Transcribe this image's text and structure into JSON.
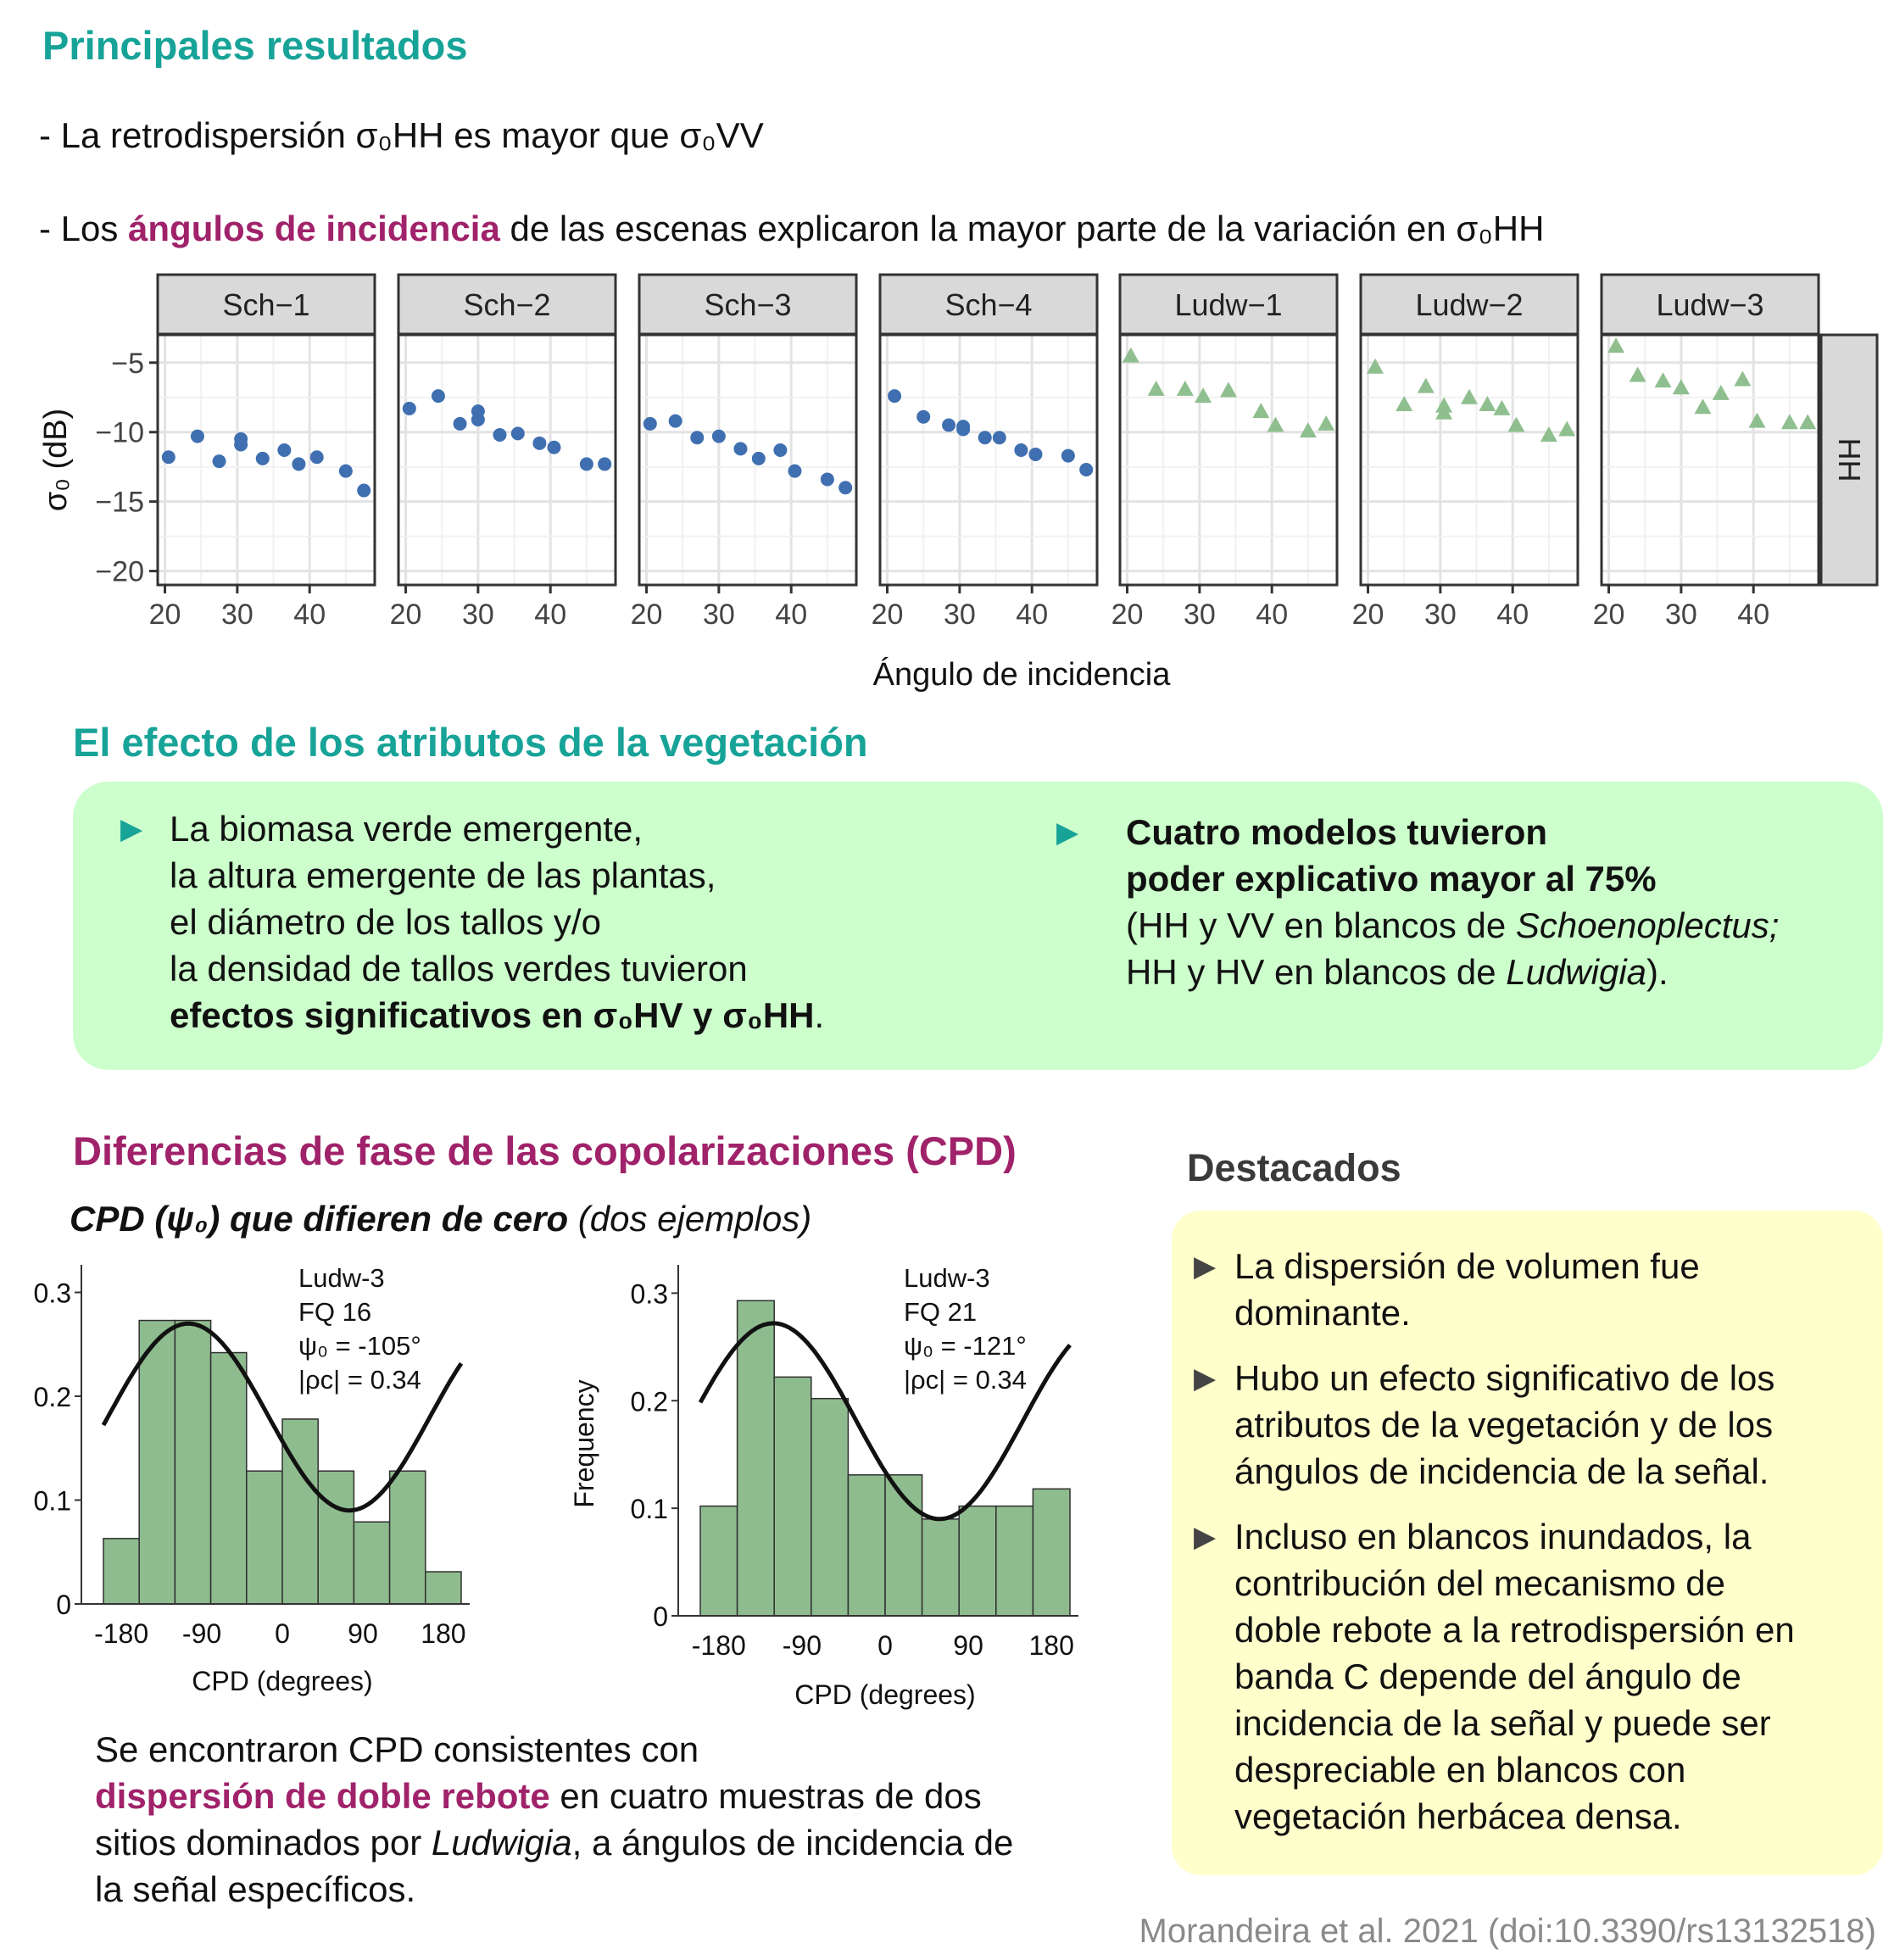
{
  "section1": {
    "title": "Principales resultados",
    "bullet1": "- La retrodispersión σ₀HH es mayor que σ₀VV",
    "bullet2_pre": "- Los ",
    "bullet2_hl": "ángulos de incidencia",
    "bullet2_post": " de las escenas explicaron la mayor parte de la variación en σ₀HH"
  },
  "facet_chart": {
    "chart_data": {
      "type": "scatter",
      "ylabel": "σ₀ (dB)",
      "xlabel": "Ángulo de incidencia",
      "strip_right": "HH",
      "xlim": [
        19,
        49
      ],
      "ylim": [
        -21,
        -3
      ],
      "xticks": [
        20,
        30,
        40
      ],
      "yticks": [
        -5,
        -10,
        -15,
        -20
      ],
      "ytick_labels": [
        "−5",
        "−10",
        "−15",
        "−20"
      ],
      "colors": {
        "Sch": "#3f6fb0",
        "Ludw": "#8fbf8f"
      },
      "panels": [
        {
          "name": "Sch−1",
          "marker": "circle",
          "points": [
            [
              20.5,
              -11.8
            ],
            [
              24.5,
              -10.3
            ],
            [
              27.5,
              -12.1
            ],
            [
              30.5,
              -10.5
            ],
            [
              30.5,
              -10.9
            ],
            [
              33.5,
              -11.9
            ],
            [
              36.5,
              -11.3
            ],
            [
              38.5,
              -12.3
            ],
            [
              41,
              -11.8
            ],
            [
              45,
              -12.8
            ],
            [
              47.5,
              -14.2
            ]
          ]
        },
        {
          "name": "Sch−2",
          "marker": "circle",
          "points": [
            [
              20.5,
              -8.3
            ],
            [
              24.5,
              -7.4
            ],
            [
              27.5,
              -9.4
            ],
            [
              30,
              -8.5
            ],
            [
              30,
              -9.1
            ],
            [
              33,
              -10.2
            ],
            [
              35.5,
              -10.1
            ],
            [
              38.5,
              -10.8
            ],
            [
              40.5,
              -11.1
            ],
            [
              45,
              -12.3
            ],
            [
              47.5,
              -12.3
            ]
          ]
        },
        {
          "name": "Sch−3",
          "marker": "circle",
          "points": [
            [
              20.5,
              -9.4
            ],
            [
              24,
              -9.2
            ],
            [
              27,
              -10.4
            ],
            [
              30,
              -10.3
            ],
            [
              33,
              -11.2
            ],
            [
              35.5,
              -11.9
            ],
            [
              38.5,
              -11.3
            ],
            [
              40.5,
              -12.8
            ],
            [
              45,
              -13.4
            ],
            [
              47.5,
              -14.0
            ]
          ]
        },
        {
          "name": "Sch−4",
          "marker": "circle",
          "points": [
            [
              21,
              -7.4
            ],
            [
              25,
              -8.9
            ],
            [
              28.5,
              -9.5
            ],
            [
              30.5,
              -9.6
            ],
            [
              30.5,
              -9.8
            ],
            [
              33.5,
              -10.4
            ],
            [
              35.5,
              -10.4
            ],
            [
              38.5,
              -11.3
            ],
            [
              40.5,
              -11.6
            ],
            [
              45,
              -11.7
            ],
            [
              47.5,
              -12.7
            ]
          ]
        },
        {
          "name": "Ludw−1",
          "marker": "triangle",
          "points": [
            [
              20.5,
              -4.5
            ],
            [
              24,
              -6.9
            ],
            [
              28,
              -6.9
            ],
            [
              30.5,
              -7.4
            ],
            [
              34,
              -7.0
            ],
            [
              38.5,
              -8.5
            ],
            [
              40.5,
              -9.5
            ],
            [
              45,
              -9.9
            ],
            [
              47.5,
              -9.4
            ]
          ]
        },
        {
          "name": "Ludw−2",
          "marker": "triangle",
          "points": [
            [
              21,
              -5.3
            ],
            [
              25,
              -8.0
            ],
            [
              28,
              -6.7
            ],
            [
              30.5,
              -8.1
            ],
            [
              30.5,
              -8.6
            ],
            [
              34,
              -7.5
            ],
            [
              36.5,
              -8.0
            ],
            [
              38.5,
              -8.3
            ],
            [
              40.5,
              -9.5
            ],
            [
              45,
              -10.2
            ],
            [
              47.5,
              -9.8
            ]
          ]
        },
        {
          "name": "Ludw−3",
          "marker": "triangle",
          "points": [
            [
              21,
              -3.8
            ],
            [
              24,
              -5.9
            ],
            [
              27.5,
              -6.3
            ],
            [
              30,
              -6.8
            ],
            [
              33,
              -8.2
            ],
            [
              35.5,
              -7.2
            ],
            [
              38.5,
              -6.2
            ],
            [
              40.5,
              -9.2
            ],
            [
              45,
              -9.3
            ],
            [
              47.5,
              -9.3
            ]
          ]
        }
      ]
    }
  },
  "section2": {
    "title": "El efecto de los atributos de la vegetación",
    "left_lines": [
      "La biomasa verde emergente,",
      "la altura emergente de las plantas,",
      "el diámetro de los tallos y/o",
      "la densidad de tallos verdes tuvieron"
    ],
    "left_bold": "efectos significativos en σ₀HV y σ₀HH",
    "left_end": ".",
    "right_bold1": "Cuatro modelos tuvieron",
    "right_bold2": "poder explicativo mayor al 75%",
    "right_l3_a": "(HH y VV en blancos de ",
    "right_l3_i": "Schoenoplectus;",
    "right_l4_a": "HH y HV en blancos de ",
    "right_l4_i": "Ludwigia",
    "right_l4_b": ")."
  },
  "section3": {
    "title": "Diferencias de fase de las copolarizaciones (CPD)",
    "subtitle_bi": "CPD (ψ₀) que difieren de cero",
    "subtitle_i": " (dos ejemplos)",
    "summary_1": "Se encontraron CPD consistentes con",
    "summary_hl": "dispersión de doble rebote",
    "summary_2": " en cuatro muestras de dos",
    "summary_3a": "sitios dominados por ",
    "summary_3i": "Ludwigia",
    "summary_3b": ", a ángulos de incidencia de",
    "summary_4": "la señal específicos."
  },
  "histograms": {
    "chart_data": [
      {
        "type": "bar",
        "xlabel": "CPD (degrees)",
        "ylabel": "",
        "xticks": [
          -180,
          -90,
          0,
          90,
          180
        ],
        "yticks": [
          0,
          0.1,
          0.2,
          0.3
        ],
        "ylim": [
          0,
          0.32
        ],
        "bin_edges": [
          -200,
          -160,
          -120,
          -80,
          -40,
          0,
          40,
          80,
          120,
          160,
          200
        ],
        "values": [
          0.063,
          0.273,
          0.273,
          0.242,
          0.128,
          0.178,
          0.128,
          0.079,
          0.128,
          0.031
        ],
        "curve": {
          "amplitude": 0.09,
          "offset": 0.18,
          "phase_deg": -105
        },
        "annotation": [
          "Ludw-3",
          "FQ 16",
          "ψ₀ = -105°",
          "|ρc| = 0.34"
        ]
      },
      {
        "type": "bar",
        "xlabel": "CPD (degrees)",
        "ylabel": "Frequency",
        "xticks": [
          -180,
          -90,
          0,
          90,
          180
        ],
        "yticks": [
          0,
          0.1,
          0.2,
          0.3
        ],
        "ylim": [
          0,
          0.32
        ],
        "bin_edges": [
          -200,
          -160,
          -120,
          -80,
          -40,
          0,
          40,
          80,
          120,
          160,
          200
        ],
        "values": [
          0.102,
          0.293,
          0.222,
          0.202,
          0.131,
          0.131,
          0.09,
          0.102,
          0.102,
          0.118
        ],
        "curve": {
          "amplitude": 0.091,
          "offset": 0.181,
          "phase_deg": -121
        },
        "annotation": [
          "Ludw-3",
          "FQ 21",
          "ψ₀ = -121°",
          "|ρc| = 0.34"
        ]
      }
    ]
  },
  "highlights": {
    "title": "Destacados",
    "items": [
      [
        "La dispersión de volumen fue",
        "dominante."
      ],
      [
        "Hubo un efecto significativo de los",
        "atributos de la vegetación y de los",
        "ángulos de incidencia de la señal."
      ],
      [
        "Incluso en blancos inundados, la",
        "contribución del mecanismo de",
        "doble rebote a la retrodispersión en",
        "banda C depende del ángulo de",
        "incidencia de la señal y puede ser",
        "despreciable en blancos con",
        "vegetación herbácea densa."
      ]
    ]
  },
  "citation": "Morandeira et al. 2021 (doi:10.3390/rs13132518)"
}
